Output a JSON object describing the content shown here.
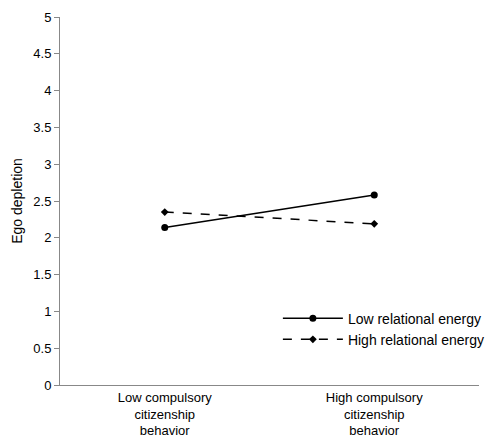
{
  "chart_data": {
    "type": "line",
    "y_label": "Ego depletion",
    "categories": [
      "Low compulsory citizenship behavior",
      "High compulsory citizenship behavior"
    ],
    "series": [
      {
        "name": "Low relational energy",
        "color": "#000000",
        "values": [
          2.14,
          2.58
        ],
        "marker": "circle",
        "line_style": "solid"
      },
      {
        "name": "High relational energy",
        "color": "#000000",
        "values": [
          2.35,
          2.19
        ],
        "marker": "diamond",
        "line_style": "dash"
      }
    ],
    "ylim": [
      0,
      5
    ],
    "yticks": [
      0,
      0.5,
      1,
      1.5,
      2,
      2.5,
      3,
      3.5,
      4,
      4.5,
      5
    ],
    "grid": false,
    "legend": "lower right"
  }
}
